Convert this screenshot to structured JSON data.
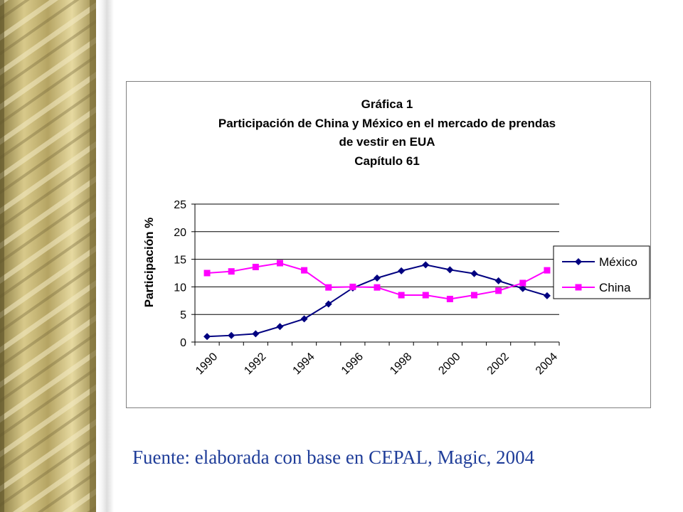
{
  "chart_data": {
    "type": "line",
    "title_lines": [
      "Gráfica 1",
      "Participación  de China y México en el mercado de prendas",
      "de vestir en EUA",
      "Capítulo 61"
    ],
    "xlabel": "",
    "ylabel": "Participación %",
    "x": [
      1990,
      1991,
      1992,
      1993,
      1994,
      1995,
      1996,
      1997,
      1998,
      1999,
      2000,
      2001,
      2002,
      2003,
      2004
    ],
    "x_tick_labels": [
      "1990",
      "1992",
      "1994",
      "1996",
      "1998",
      "2000",
      "2002",
      "2004"
    ],
    "ylim": [
      0,
      25
    ],
    "y_ticks": [
      0,
      5,
      10,
      15,
      20,
      25
    ],
    "grid": "horizontal",
    "legend_position": "right",
    "series": [
      {
        "name": "México",
        "marker": "diamond",
        "color": "#000080",
        "values": [
          1.0,
          1.2,
          1.5,
          2.8,
          4.2,
          6.9,
          9.8,
          11.6,
          12.9,
          14.0,
          13.1,
          12.4,
          11.1,
          9.7,
          8.4
        ]
      },
      {
        "name": "China",
        "marker": "square",
        "color": "#ff00ff",
        "values": [
          12.5,
          12.8,
          13.6,
          14.3,
          13.0,
          9.9,
          10.0,
          9.9,
          8.5,
          8.5,
          7.8,
          8.5,
          9.3,
          10.7,
          13.0
        ]
      }
    ]
  },
  "source_note": "Fuente: elaborada con base en CEPAL, Magic, 2004",
  "theme": {
    "border_gold": "#c9b874",
    "border_dark": "#6f6233",
    "border_light": "#efe4b0",
    "gridline": "#000000"
  }
}
